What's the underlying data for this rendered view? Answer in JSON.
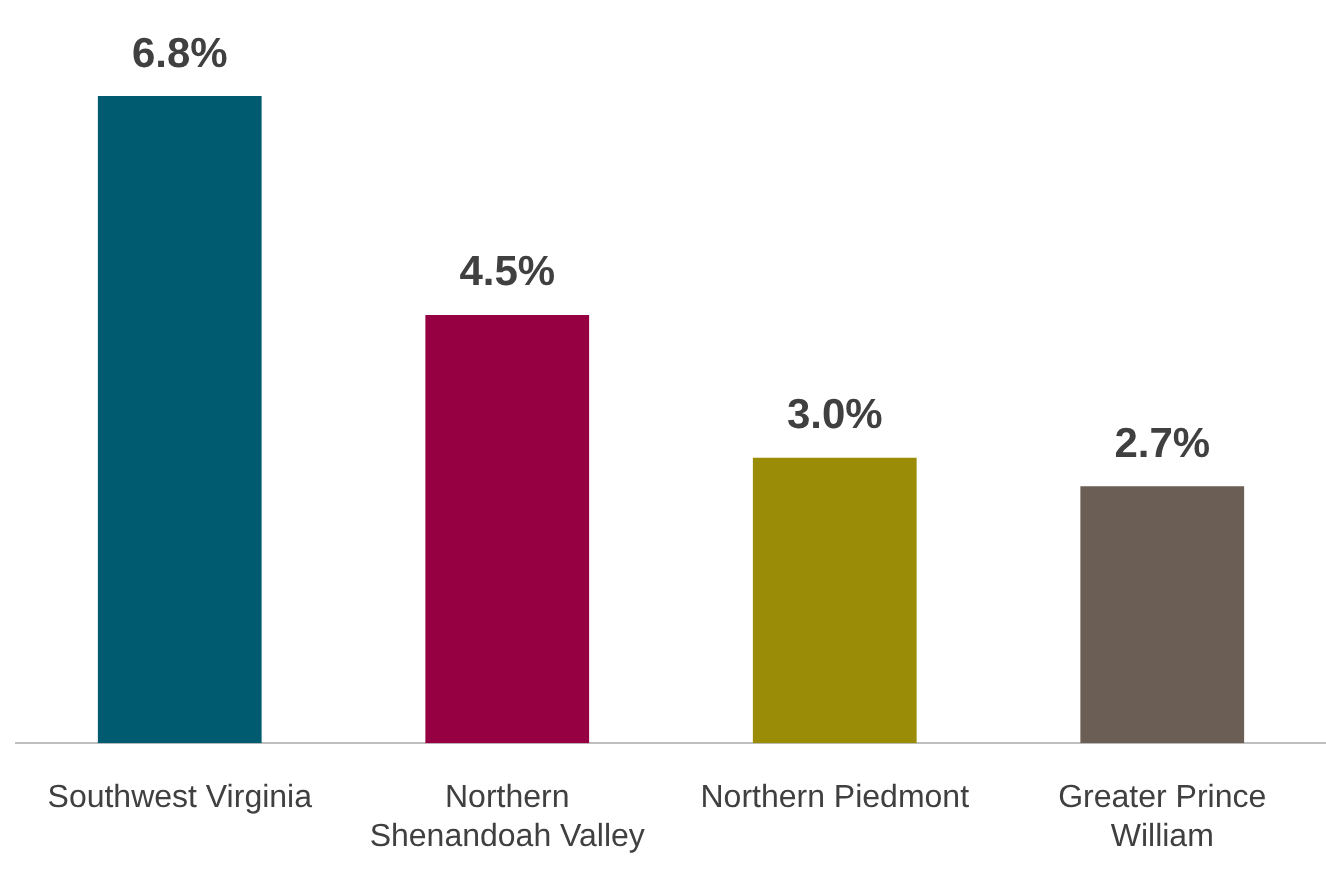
{
  "chart_data": {
    "type": "bar",
    "categories": [
      "Southwest Virginia",
      "Northern Shenandoah Valley",
      "Northern Piedmont",
      "Greater Prince William"
    ],
    "values": [
      6.8,
      4.5,
      3.0,
      2.7
    ],
    "colors": [
      "#005a70",
      "#960042",
      "#9a8c07",
      "#6b5e55"
    ],
    "value_labels": [
      "6.8%",
      "4.5%",
      "3.0%",
      "2.7%"
    ],
    "grid": false,
    "legend": false
  }
}
